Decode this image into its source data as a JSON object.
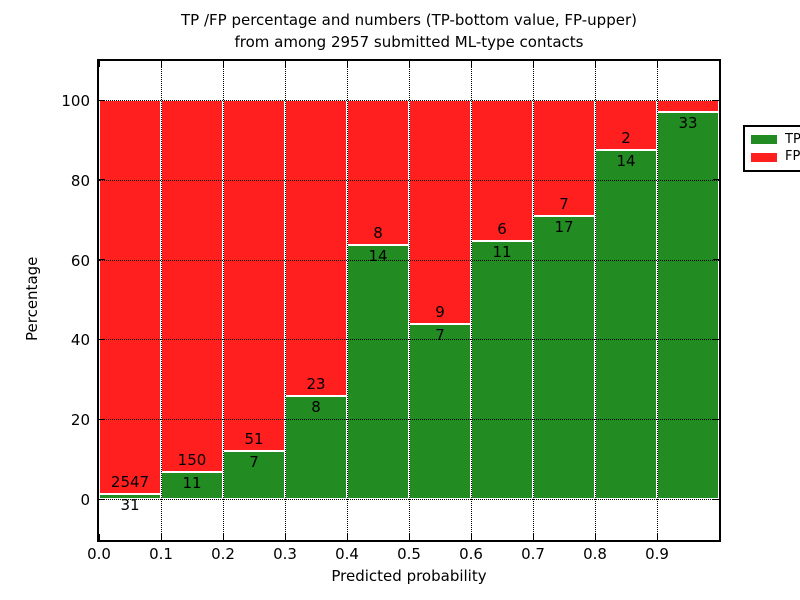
{
  "figure": {
    "title_line1": "TP /FP percentage and numbers (TP-bottom value, FP-upper)",
    "title_line2": "from among 2957 submitted ML-type contacts"
  },
  "axes": {
    "xlabel": "Predicted probability",
    "ylabel": "Percentage",
    "x_tick_labels": [
      "0.0",
      "0.1",
      "0.2",
      "0.3",
      "0.4",
      "0.5",
      "0.6",
      "0.7",
      "0.8",
      "0.9"
    ],
    "y_tick_labels": [
      "0",
      "20",
      "40",
      "60",
      "80",
      "100"
    ],
    "y_tick_values": [
      0,
      20,
      40,
      60,
      80,
      100
    ],
    "xlim": [
      0.0,
      1.0
    ],
    "ylim": [
      -10,
      110
    ],
    "grid_style": "dotted",
    "frame_color": "#000000",
    "background": "#ffffff"
  },
  "legend": {
    "position": "upper-right",
    "items": [
      {
        "label": "TP",
        "color": "#228b22"
      },
      {
        "label": "FP",
        "color": "#ff1f1f"
      }
    ]
  },
  "chart_data": {
    "type": "bar",
    "stacked": true,
    "normalized": "each bin scaled to 100%",
    "title": "TP /FP percentage and numbers (TP-bottom value, FP-upper) from among 2957 submitted ML-type contacts",
    "xlabel": "Predicted probability",
    "ylabel": "Percentage",
    "ylim": [
      -10,
      110
    ],
    "grid": true,
    "legend_position": "upper-right",
    "bin_edges": [
      0.0,
      0.1,
      0.2,
      0.3,
      0.4,
      0.5,
      0.6,
      0.7,
      0.8,
      0.9,
      1.0
    ],
    "total_contacts": 2957,
    "series": [
      {
        "name": "TP",
        "color": "#228b22",
        "counts": [
          31,
          11,
          7,
          8,
          14,
          7,
          11,
          17,
          14,
          33
        ]
      },
      {
        "name": "FP",
        "color": "#ff1f1f",
        "counts": [
          2547,
          150,
          51,
          23,
          8,
          9,
          6,
          7,
          2,
          1
        ]
      }
    ],
    "tp_percent_of_bin": [
      1.2,
      6.8,
      12.1,
      25.8,
      63.6,
      43.8,
      64.7,
      70.8,
      87.5,
      97.1
    ],
    "bar_labels": {
      "tp": [
        "31",
        "11",
        "7",
        "8",
        "14",
        "7",
        "11",
        "17",
        "14",
        "33"
      ],
      "fp": [
        "2547",
        "150",
        "51",
        "23",
        "8",
        "9",
        "6",
        "7",
        "2",
        ""
      ]
    },
    "bar_edge_color": "#ffffff"
  }
}
